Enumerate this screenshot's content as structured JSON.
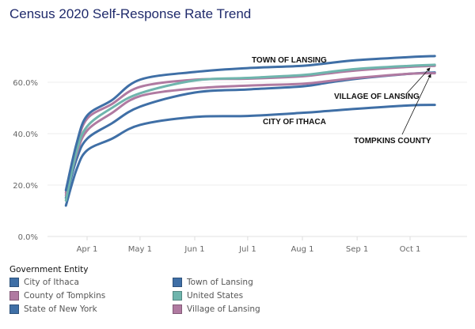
{
  "chart_data": {
    "type": "line",
    "title": "Census 2020 Self-Response Rate Trend",
    "xlabel": "",
    "ylabel": "",
    "x_ticks": [
      "Apr 1",
      "May 1",
      "Jun 1",
      "Jul 1",
      "Aug 1",
      "Sep 1",
      "Oct 1"
    ],
    "y_ticks": [
      "0.0%",
      "20.0%",
      "40.0%",
      "60.0%"
    ],
    "ylim": [
      0,
      72
    ],
    "grid": true,
    "x": [
      "2020-03-20",
      "2020-03-26",
      "2020-04-01",
      "2020-04-15",
      "2020-05-01",
      "2020-06-01",
      "2020-07-01",
      "2020-08-01",
      "2020-08-15",
      "2020-09-01",
      "2020-10-01",
      "2020-10-15"
    ],
    "series": [
      {
        "name": "City of Ithaca",
        "color": "#3f6fa6",
        "values": [
          12,
          26,
          33.5,
          38,
          43.4,
          46.5,
          46.9,
          48.1,
          48.8,
          49.7,
          51,
          51.2
        ]
      },
      {
        "name": "County of Tompkins",
        "color": "#b07aa1",
        "values": [
          16,
          32,
          41.2,
          48,
          54.6,
          57.6,
          58.7,
          59.4,
          60.4,
          61.7,
          63.3,
          63.5
        ]
      },
      {
        "name": "State of New York",
        "color": "#3f6fa6",
        "values": [
          15,
          30,
          38,
          44,
          50.5,
          56,
          57.2,
          58.4,
          59.8,
          61.4,
          63.3,
          63.8
        ]
      },
      {
        "name": "Town of Lansing",
        "color": "#3f6fa6",
        "values": [
          18,
          36,
          47,
          53,
          61,
          64,
          65.5,
          66.4,
          67.4,
          68.6,
          69.8,
          70.2
        ]
      },
      {
        "name": "United States",
        "color": "#6fb5ad",
        "values": [
          14,
          33,
          42.8,
          50,
          55.7,
          60.7,
          61.7,
          62.8,
          63.9,
          65.2,
          66.4,
          66.8
        ]
      },
      {
        "name": "Village of Lansing",
        "color": "#b07aa1",
        "values": [
          17,
          35,
          45.8,
          51.5,
          58.2,
          61,
          61.4,
          62.3,
          63.4,
          64.6,
          66,
          66.4
        ]
      }
    ],
    "annotations": [
      "TOWN OF LANSING",
      "VILLAGE OF LANSING",
      "CITY OF ITHACA",
      "TOMPKINS COUNTY"
    ],
    "legend": {
      "title": "Government Entity",
      "placement": "bottom"
    }
  }
}
